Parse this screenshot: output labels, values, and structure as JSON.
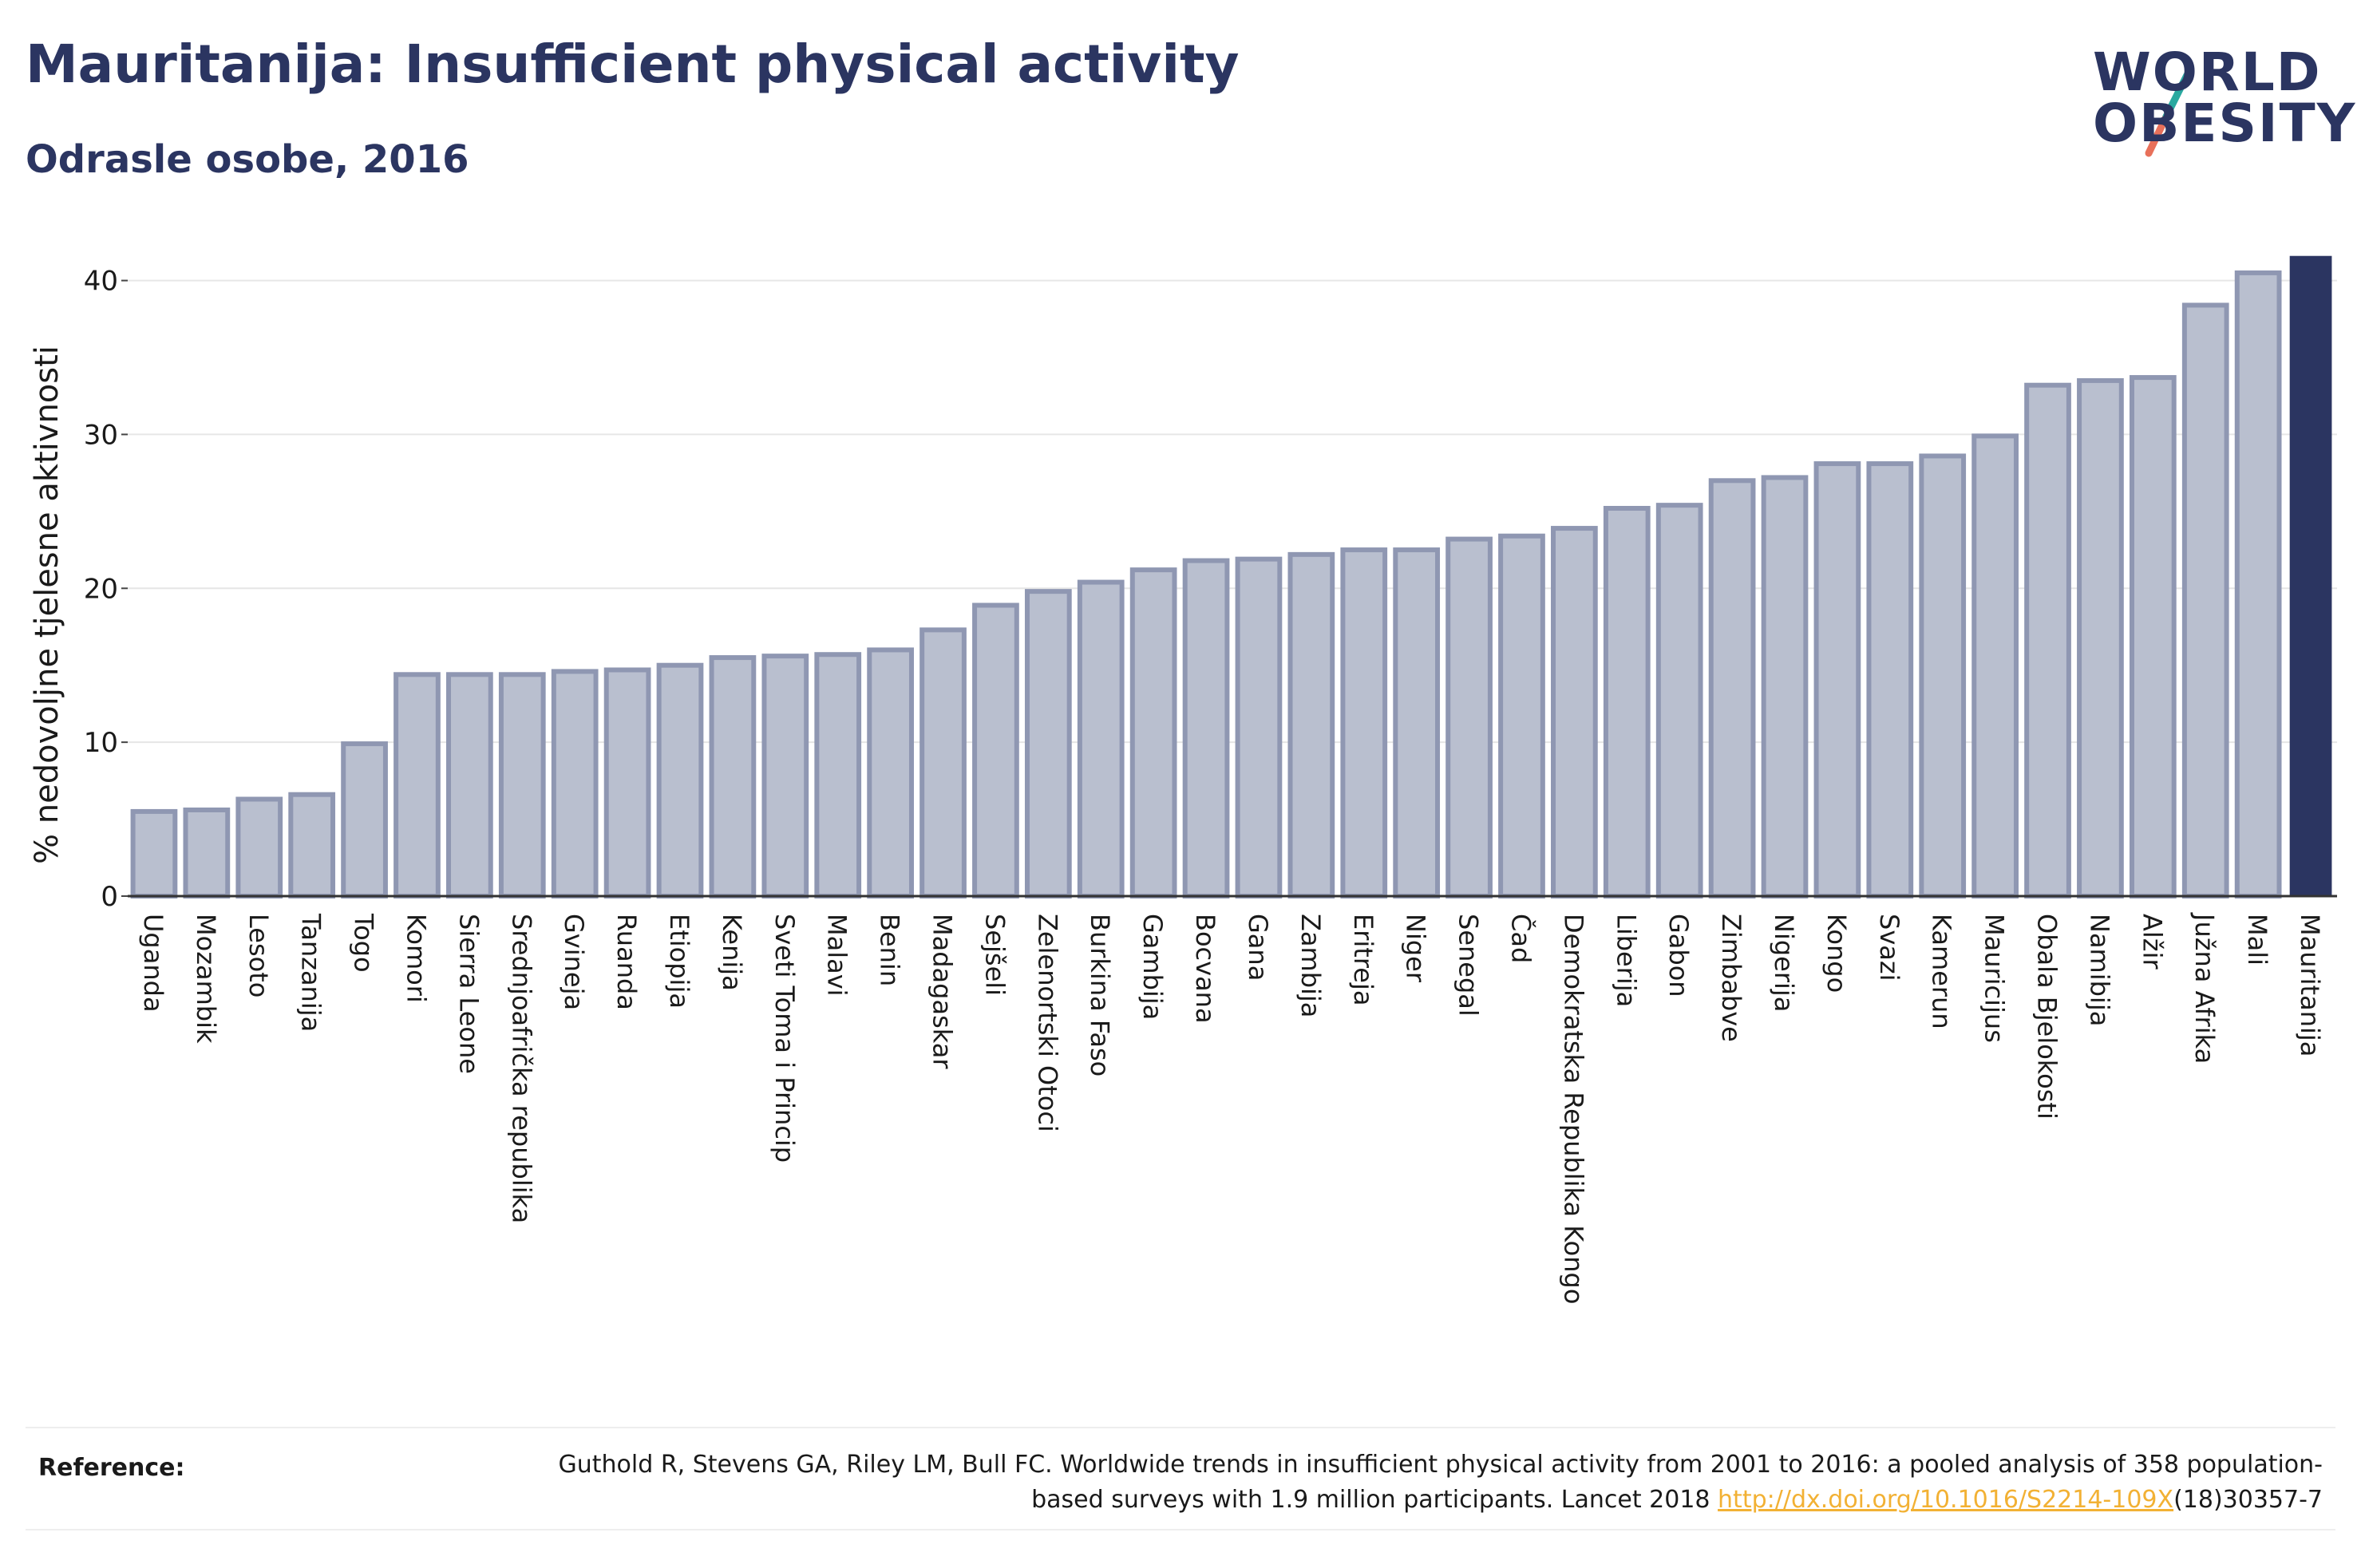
{
  "header": {
    "title": "Mauritanija: Insufficient physical activity",
    "subtitle": "Odrasle osobe, 2016"
  },
  "logo": {
    "line1": "WORLD",
    "line2": "OBESITY"
  },
  "colors": {
    "bar": "#b9bfcf",
    "bar_stroke": "#8f97b2",
    "highlight": "#2b3561",
    "grid": "#e6e6e6",
    "link": "#f2b134"
  },
  "chart_data": {
    "type": "bar",
    "title": "Mauritanija: Insufficient physical activity",
    "subtitle": "Odrasle osobe, 2016",
    "xlabel": "",
    "ylabel": "% nedovoljne tjelesne aktivnosti",
    "ylim": [
      0,
      42
    ],
    "yticks": [
      0,
      10,
      20,
      30,
      40
    ],
    "grid": true,
    "highlight": "Mauritanija",
    "categories": [
      "Uganda",
      "Mozambik",
      "Lesoto",
      "Tanzanija",
      "Togo",
      "Komori",
      "Sierra Leone",
      "Srednjoafrička republika",
      "Gvineja",
      "Ruanda",
      "Etiopija",
      "Kenija",
      "Sveti Toma i Princip",
      "Malavi",
      "Benin",
      "Madagaskar",
      "Sejšeli",
      "Zelenortski Otoci",
      "Burkina Faso",
      "Gambija",
      "Bocvana",
      "Gana",
      "Zambija",
      "Eritreja",
      "Niger",
      "Senegal",
      "Čad",
      "Demokratska Republika Kongo",
      "Liberija",
      "Gabon",
      "Zimbabve",
      "Nigerija",
      "Kongo",
      "Svazi",
      "Kamerun",
      "Mauricijus",
      "Obala Bjelokosti",
      "Namibija",
      "Alžir",
      "Južna Afrika",
      "Mali",
      "Mauritanija"
    ],
    "values": [
      5.5,
      5.6,
      6.3,
      6.6,
      9.9,
      14.4,
      14.4,
      14.4,
      14.6,
      14.7,
      15.0,
      15.5,
      15.6,
      15.7,
      16.0,
      17.3,
      18.9,
      19.8,
      20.4,
      21.2,
      21.8,
      21.9,
      22.2,
      22.5,
      22.5,
      23.2,
      23.4,
      23.9,
      25.2,
      25.4,
      27.0,
      27.2,
      28.1,
      28.1,
      28.6,
      29.9,
      33.2,
      33.5,
      33.7,
      38.4,
      40.5,
      41.6
    ]
  },
  "reference": {
    "label": "Reference:",
    "text_part1": "Guthold R, Stevens GA, Riley LM, Bull FC. Worldwide trends in insufficient physical activity from 2001 to 2016: a pooled analysis of 358 population-based surveys with 1.9 million participants. Lancet 2018 ",
    "link": "http://dx.doi.org/10.1016/S2214-109X",
    "text_part2": "(18)30357-7"
  }
}
